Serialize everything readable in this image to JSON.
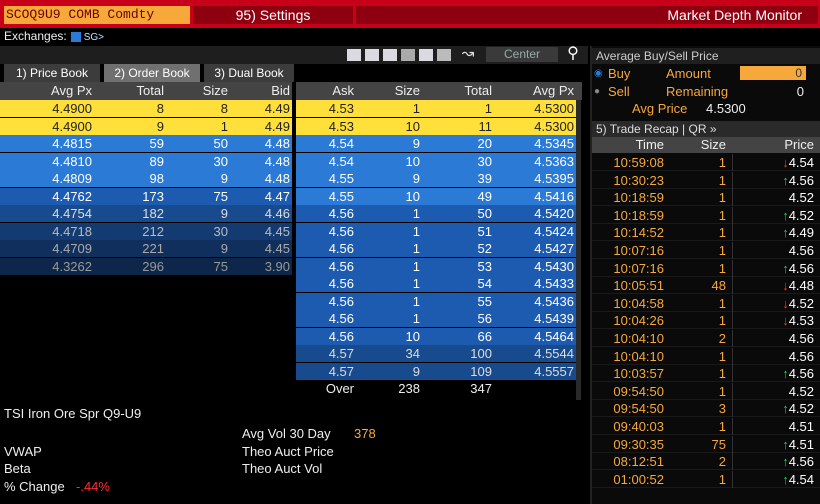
{
  "header": {
    "ticker": "SCOQ9U9 COMB Comdty",
    "settings": "95) Settings",
    "title": "Market Depth Monitor"
  },
  "exchanges": {
    "label": "Exchanges:",
    "value": "SG>"
  },
  "toolbar": {
    "center": "Center"
  },
  "tabs": [
    "1) Price Book",
    "2) Order Book",
    "3) Dual Book"
  ],
  "bid_columns": [
    "Avg Px",
    "Total",
    "Size",
    "Bid"
  ],
  "ask_columns": [
    "Ask",
    "Size",
    "Total",
    "Avg Px"
  ],
  "bids": [
    [
      "4.4900",
      "8",
      "8",
      "4.49"
    ],
    [
      "4.4900",
      "9",
      "1",
      "4.49"
    ],
    [
      "4.4815",
      "59",
      "50",
      "4.48"
    ],
    [
      "4.4810",
      "89",
      "30",
      "4.48"
    ],
    [
      "4.4809",
      "98",
      "9",
      "4.48"
    ],
    [
      "4.4762",
      "173",
      "75",
      "4.47"
    ],
    [
      "4.4754",
      "182",
      "9",
      "4.46"
    ],
    [
      "4.4718",
      "212",
      "30",
      "4.45"
    ],
    [
      "4.4709",
      "221",
      "9",
      "4.45"
    ],
    [
      "4.3262",
      "296",
      "75",
      "3.90"
    ]
  ],
  "asks": [
    [
      "4.53",
      "1",
      "1",
      "4.5300"
    ],
    [
      "4.53",
      "10",
      "11",
      "4.5300"
    ],
    [
      "4.54",
      "9",
      "20",
      "4.5345"
    ],
    [
      "4.54",
      "10",
      "30",
      "4.5363"
    ],
    [
      "4.55",
      "9",
      "39",
      "4.5395"
    ],
    [
      "4.55",
      "10",
      "49",
      "4.5416"
    ],
    [
      "4.56",
      "1",
      "50",
      "4.5420"
    ],
    [
      "4.56",
      "1",
      "51",
      "4.5424"
    ],
    [
      "4.56",
      "1",
      "52",
      "4.5427"
    ],
    [
      "4.56",
      "1",
      "53",
      "4.5430"
    ],
    [
      "4.56",
      "1",
      "54",
      "4.5433"
    ],
    [
      "4.56",
      "1",
      "55",
      "4.5436"
    ],
    [
      "4.56",
      "1",
      "56",
      "4.5439"
    ],
    [
      "4.56",
      "10",
      "66",
      "4.5464"
    ],
    [
      "4.57",
      "34",
      "100",
      "4.5544"
    ],
    [
      "4.57",
      "9",
      "109",
      "4.5557"
    ],
    [
      "Over",
      "238",
      "347",
      ""
    ]
  ],
  "panel": {
    "title": "Average Buy/Sell Price",
    "buy": "Buy",
    "sell": "Sell",
    "amount_label": "Amount",
    "amount_value": "0",
    "remaining_label": "Remaining",
    "remaining_value": "0",
    "avg_price_label": "Avg Price",
    "avg_price_value": "4.5300"
  },
  "trade_recap": {
    "header": "5) Trade Recap | QR »",
    "columns": [
      "Time",
      "Size",
      "Price"
    ],
    "rows": [
      [
        "10:59:08",
        "1",
        "4.54",
        "dn"
      ],
      [
        "10:30:23",
        "1",
        "4.56",
        "up"
      ],
      [
        "10:18:59",
        "1",
        "4.52",
        ""
      ],
      [
        "10:18:59",
        "1",
        "4.52",
        "up"
      ],
      [
        "10:14:52",
        "1",
        "4.49",
        "up"
      ],
      [
        "10:07:16",
        "1",
        "4.56",
        ""
      ],
      [
        "10:07:16",
        "1",
        "4.56",
        "up"
      ],
      [
        "10:05:51",
        "48",
        "4.48",
        "dn"
      ],
      [
        "10:04:58",
        "1",
        "4.52",
        "dn"
      ],
      [
        "10:04:26",
        "1",
        "4.53",
        "dn"
      ],
      [
        "10:04:10",
        "2",
        "4.56",
        ""
      ],
      [
        "10:04:10",
        "1",
        "4.56",
        ""
      ],
      [
        "10:03:57",
        "1",
        "4.56",
        "up"
      ],
      [
        "09:54:50",
        "1",
        "4.52",
        ""
      ],
      [
        "09:54:50",
        "3",
        "4.52",
        "up"
      ],
      [
        "09:40:03",
        "1",
        "4.51",
        ""
      ],
      [
        "09:30:35",
        "75",
        "4.51",
        "up"
      ],
      [
        "08:12:51",
        "2",
        "4.56",
        "up"
      ],
      [
        "01:00:52",
        "1",
        "4.54",
        "up"
      ]
    ]
  },
  "info": {
    "name": "TSI Iron Ore Spr  Q9-U9",
    "avg_vol_label": "Avg Vol 30 Day",
    "avg_vol_value": "378",
    "vwap": "VWAP",
    "theo_price": "Theo Auct Price",
    "beta": "Beta",
    "theo_vol": "Theo Auct Vol",
    "pct_change_label": "% Change",
    "pct_change_value": "-.44%"
  }
}
